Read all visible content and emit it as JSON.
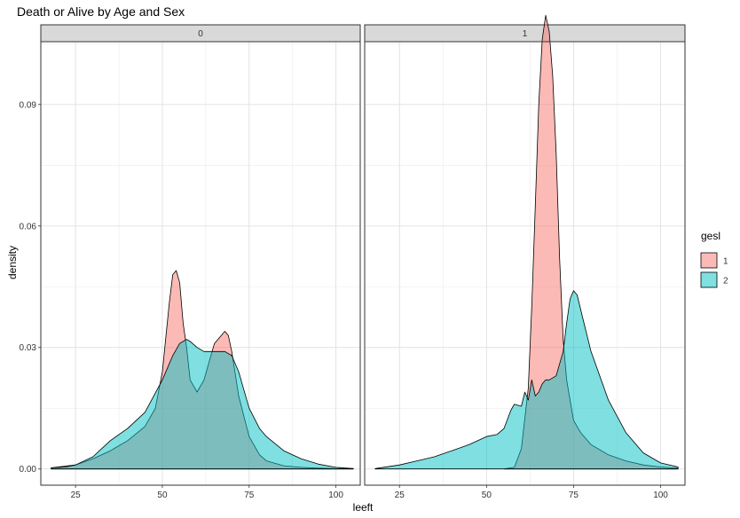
{
  "chart_data": {
    "type": "area",
    "title": "Death or Alive by Age and Sex",
    "xlabel": "leeft",
    "ylabel": "density",
    "xlim": [
      15,
      107
    ],
    "ylim": [
      -0.004,
      0.1055
    ],
    "x_ticks": [
      25,
      50,
      75,
      100
    ],
    "y_ticks": [
      0.0,
      0.03,
      0.06,
      0.09
    ],
    "y_tick_labels": [
      "0.00",
      "0.03",
      "0.06",
      "0.09"
    ],
    "grid": true,
    "legend": {
      "title": "gesl",
      "position": "right",
      "entries": [
        {
          "label": "1",
          "color": "#F8766D"
        },
        {
          "label": "2",
          "color": "#00BFC4"
        }
      ]
    },
    "panels": [
      {
        "label": "0",
        "series": [
          {
            "name": "1",
            "color": "#F8766D",
            "x": [
              18,
              25,
              30,
              35,
              40,
              45,
              48,
              50,
              52,
              53,
              54,
              55,
              56,
              57,
              58,
              60,
              62,
              64,
              65,
              67,
              68,
              69,
              70,
              72,
              75,
              78,
              80,
              85,
              90,
              95,
              100,
              105
            ],
            "y": [
              0.0003,
              0.001,
              0.0025,
              0.0045,
              0.007,
              0.0105,
              0.015,
              0.024,
              0.041,
              0.048,
              0.049,
              0.046,
              0.036,
              0.03,
              0.022,
              0.019,
              0.022,
              0.028,
              0.031,
              0.033,
              0.034,
              0.033,
              0.029,
              0.018,
              0.008,
              0.0035,
              0.002,
              0.0008,
              0.0004,
              0.0002,
              0.0001,
              0.0001
            ]
          },
          {
            "name": "2",
            "color": "#00BFC4",
            "x": [
              18,
              22,
              25,
              30,
              35,
              40,
              45,
              50,
              53,
              55,
              57,
              58,
              60,
              62,
              65,
              68,
              70,
              72,
              75,
              78,
              80,
              85,
              90,
              95,
              100,
              105
            ],
            "y": [
              0.0003,
              0.0005,
              0.001,
              0.003,
              0.007,
              0.01,
              0.014,
              0.022,
              0.028,
              0.031,
              0.032,
              0.0315,
              0.03,
              0.029,
              0.029,
              0.029,
              0.028,
              0.024,
              0.015,
              0.01,
              0.008,
              0.0045,
              0.0025,
              0.0012,
              0.0004,
              0.0001
            ]
          }
        ]
      },
      {
        "label": "1",
        "series": [
          {
            "name": "1",
            "color": "#F8766D",
            "x": [
              55,
              58,
              60,
              62,
              63,
              64,
              65,
              66,
              67,
              68,
              69,
              70,
              71,
              72,
              73,
              75,
              77,
              80,
              85,
              90,
              95,
              100,
              105
            ],
            "y": [
              0.0,
              0.0004,
              0.005,
              0.02,
              0.04,
              0.065,
              0.09,
              0.106,
              0.112,
              0.108,
              0.097,
              0.078,
              0.052,
              0.032,
              0.022,
              0.012,
              0.009,
              0.006,
              0.0035,
              0.002,
              0.001,
              0.0005,
              0.0002
            ]
          },
          {
            "name": "2",
            "color": "#00BFC4",
            "x": [
              18,
              25,
              30,
              35,
              40,
              45,
              50,
              53,
              55,
              57,
              58,
              60,
              61,
              62,
              63,
              64,
              65,
              66,
              67,
              68,
              70,
              72,
              73,
              74,
              75,
              76,
              78,
              80,
              85,
              90,
              95,
              100,
              105
            ],
            "y": [
              0.0001,
              0.001,
              0.002,
              0.003,
              0.0045,
              0.006,
              0.008,
              0.0085,
              0.01,
              0.0145,
              0.016,
              0.0155,
              0.019,
              0.017,
              0.022,
              0.018,
              0.019,
              0.021,
              0.022,
              0.022,
              0.023,
              0.029,
              0.036,
              0.042,
              0.044,
              0.043,
              0.036,
              0.029,
              0.017,
              0.009,
              0.004,
              0.0015,
              0.0005
            ]
          }
        ]
      }
    ]
  }
}
